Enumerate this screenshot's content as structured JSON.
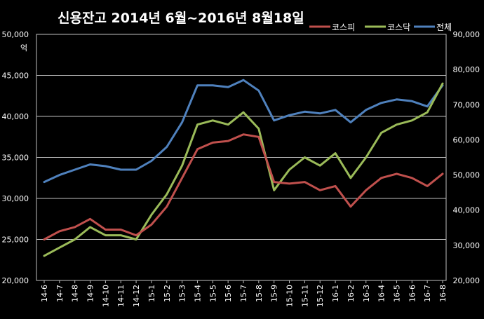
{
  "chart_data": {
    "type": "line",
    "title": "신용잔고 2014년 6월~2016년 8월18일",
    "left_axis": {
      "unit": "억",
      "ylim": [
        20000,
        50000
      ],
      "ticks": [
        "20,000",
        "25,000",
        "30,000",
        "35,000",
        "40,000",
        "45,000",
        "50,000"
      ]
    },
    "right_axis": {
      "ylim": [
        20000,
        90000
      ],
      "ticks": [
        "20,000",
        "30,000",
        "40,000",
        "50,000",
        "60,000",
        "70,000",
        "80,000",
        "90,000"
      ]
    },
    "categories": [
      "14-6",
      "14-7",
      "14-8",
      "14-9",
      "14-10",
      "14-11",
      "14-12",
      "15-1",
      "15-2",
      "15-3",
      "15-4",
      "15-5",
      "15-6",
      "15-7",
      "15-8",
      "15-9",
      "15-10",
      "15-11",
      "15-12",
      "16-1",
      "16-2",
      "16-3",
      "16-4",
      "16-5",
      "16-6",
      "16-7",
      "16-8"
    ],
    "grid": true,
    "legend": "top-right",
    "series": [
      {
        "name": "코스피",
        "axis": "left",
        "color": "#c0504d",
        "values": [
          25000,
          26000,
          26500,
          27500,
          26200,
          26200,
          25500,
          26800,
          29000,
          32500,
          36000,
          36800,
          37000,
          37800,
          37500,
          32000,
          31800,
          32000,
          31000,
          31500,
          29000,
          31000,
          32500,
          33000,
          32500,
          31500,
          33000
        ]
      },
      {
        "name": "코스닥",
        "axis": "left",
        "color": "#9bbb59",
        "values": [
          23000,
          24000,
          25000,
          26500,
          25500,
          25500,
          25000,
          28000,
          30500,
          34000,
          39000,
          39500,
          39000,
          40500,
          38500,
          31000,
          33500,
          35000,
          34000,
          35500,
          32500,
          35000,
          38000,
          39000,
          39500,
          40500,
          44000
        ]
      },
      {
        "name": "전체",
        "axis": "right",
        "color": "#4f81bd",
        "values": [
          48000,
          50000,
          51500,
          53000,
          52500,
          51500,
          51500,
          54000,
          58000,
          65000,
          75500,
          75500,
          75000,
          77000,
          74000,
          65500,
          67000,
          68000,
          67500,
          68500,
          65000,
          68500,
          70500,
          71500,
          71000,
          69500,
          75500
        ]
      }
    ]
  }
}
